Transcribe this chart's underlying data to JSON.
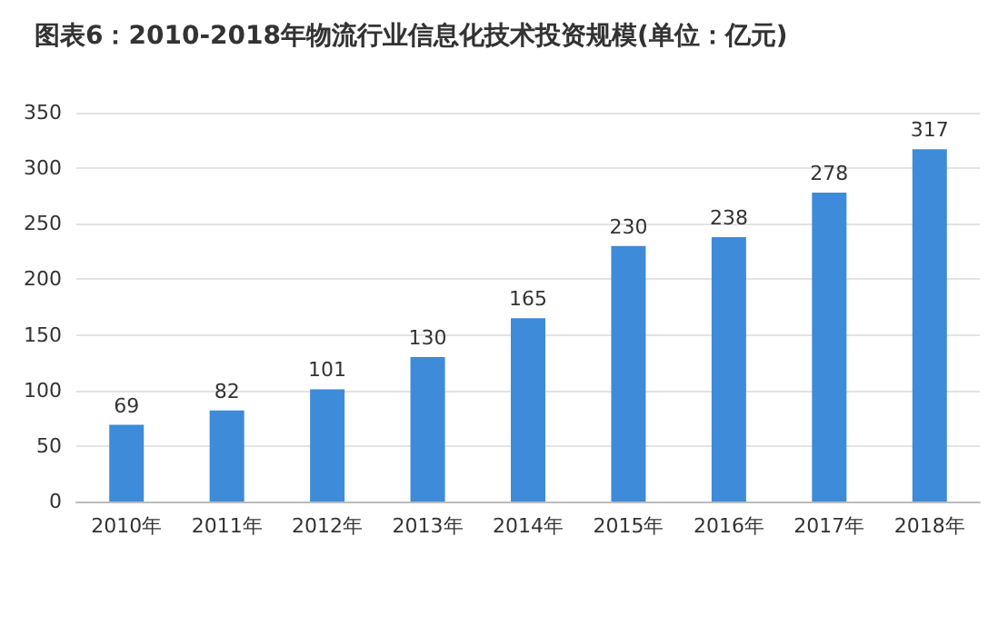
{
  "chart_data": {
    "type": "bar",
    "title": "图表6：2010-2018年物流行业信息化技术投资规模(单位：亿元)",
    "categories": [
      "2010年",
      "2011年",
      "2012年",
      "2013年",
      "2014年",
      "2015年",
      "2016年",
      "2017年",
      "2018年"
    ],
    "values": [
      69,
      82,
      101,
      130,
      165,
      230,
      238,
      278,
      317
    ],
    "color": "#3d8bd9",
    "ylim": [
      0,
      350
    ],
    "yticks": [
      0,
      50,
      100,
      150,
      200,
      250,
      300,
      350
    ],
    "grid": "y",
    "data_labels": true
  }
}
